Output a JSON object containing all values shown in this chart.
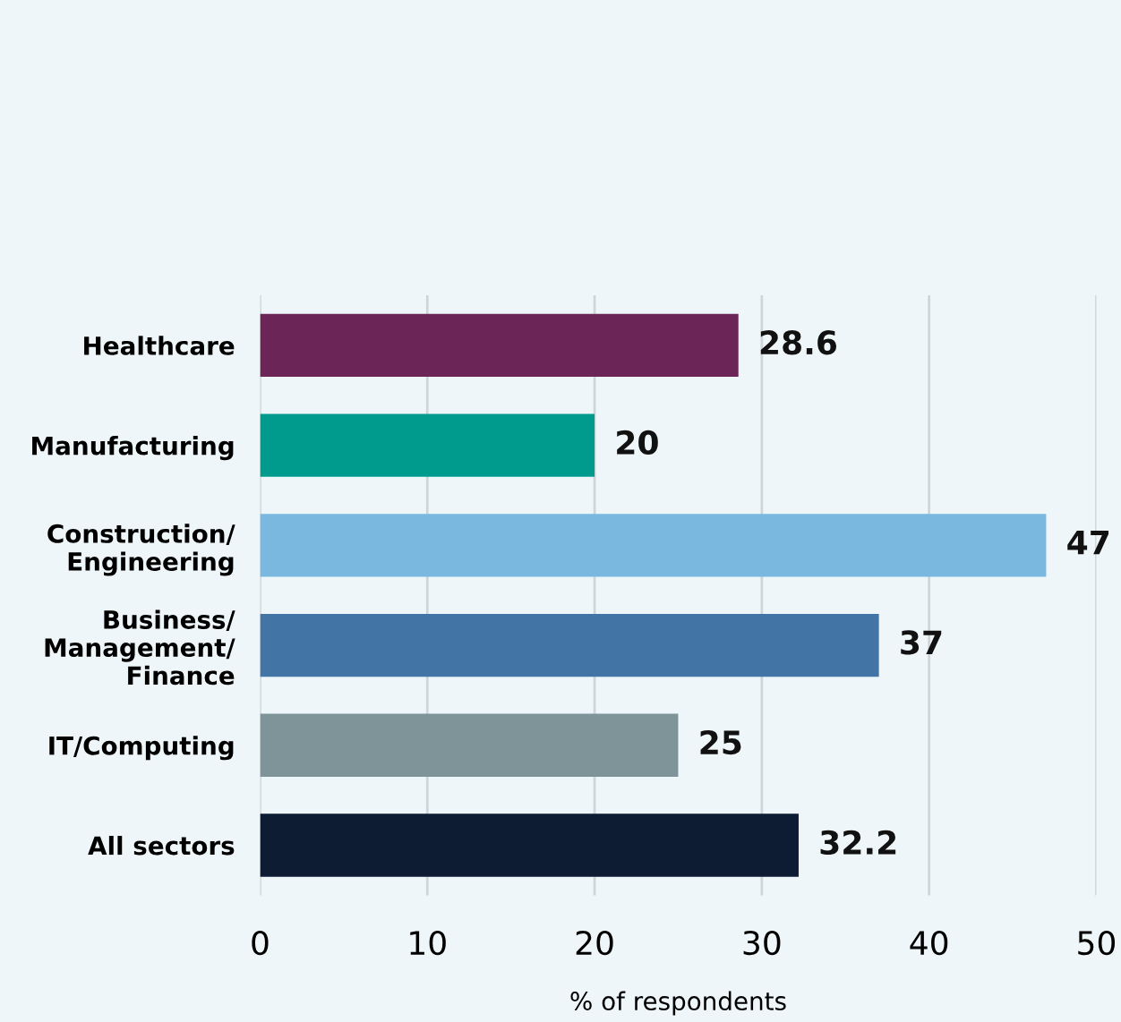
{
  "chart_data": {
    "type": "bar",
    "orientation": "horizontal",
    "xlabel": "% of respondents",
    "categories": [
      "Healthcare",
      "Manufacturing",
      "Construction/\nEngineering",
      "Business/\nManagement/\nFinance",
      "IT/Computing",
      "All sectors"
    ],
    "values": [
      28.6,
      20,
      47,
      37,
      25,
      32.2
    ],
    "colors": [
      "#6b2657",
      "#009b8d",
      "#7ab8e0",
      "#4274a6",
      "#7e9499",
      "#0d1b33"
    ],
    "xlim": [
      0,
      50
    ],
    "xticks": [
      0,
      10,
      20,
      30,
      40,
      50
    ],
    "grid": "x",
    "data_labels": true
  }
}
